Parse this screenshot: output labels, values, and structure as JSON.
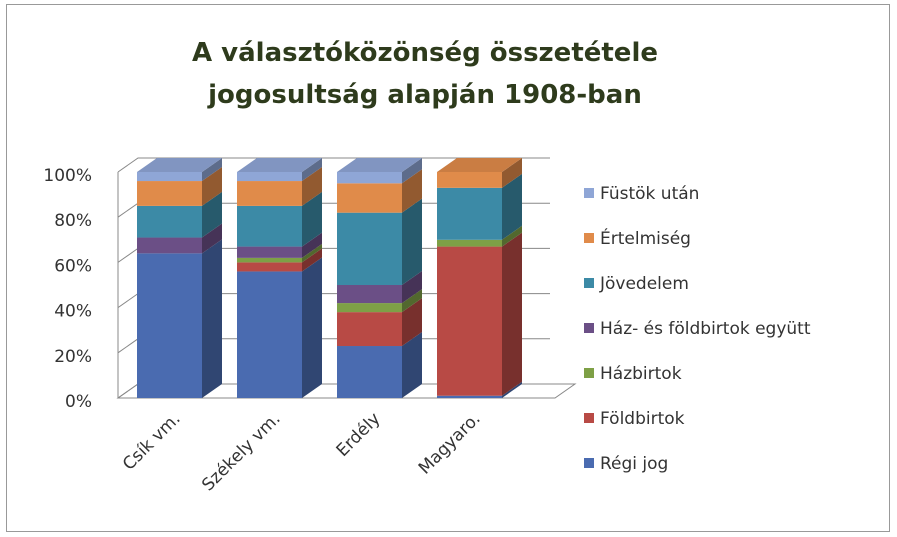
{
  "chart_data": {
    "type": "stacked_bar_3d",
    "title": "A választóközönség összetétele jogosultság alapján 1908-ban",
    "categories": [
      "Csík vm.",
      "Székely vm.",
      "Erdély",
      "Magyaro."
    ],
    "series": [
      {
        "name": "Régi jog",
        "color": "#4a6bb0",
        "values": [
          64,
          56,
          23,
          1
        ]
      },
      {
        "name": "Földbirtok",
        "color": "#b84a45",
        "values": [
          0,
          4,
          15,
          66
        ]
      },
      {
        "name": "Házbirtok",
        "color": "#7ea046",
        "values": [
          0,
          2,
          4,
          3
        ]
      },
      {
        "name": "Ház- és földbirtok együtt",
        "color": "#6b4f86",
        "values": [
          7,
          5,
          8,
          0
        ]
      },
      {
        "name": "Jövedelem",
        "color": "#3c8aa6",
        "values": [
          14,
          18,
          32,
          23
        ]
      },
      {
        "name": "Értelmiség",
        "color": "#e08b4a",
        "values": [
          11,
          11,
          13,
          7
        ]
      },
      {
        "name": "Füstök után",
        "color": "#8fa6d6",
        "values": [
          4,
          4,
          5,
          0
        ]
      }
    ],
    "ylim": [
      0,
      100
    ],
    "yticks": [
      {
        "value": 0,
        "label": "0%"
      },
      {
        "value": 20,
        "label": "20%"
      },
      {
        "value": 40,
        "label": "40%"
      },
      {
        "value": 60,
        "label": "60%"
      },
      {
        "value": 80,
        "label": "80%"
      },
      {
        "value": 100,
        "label": "100%"
      }
    ],
    "grid": true,
    "legend": "right"
  }
}
